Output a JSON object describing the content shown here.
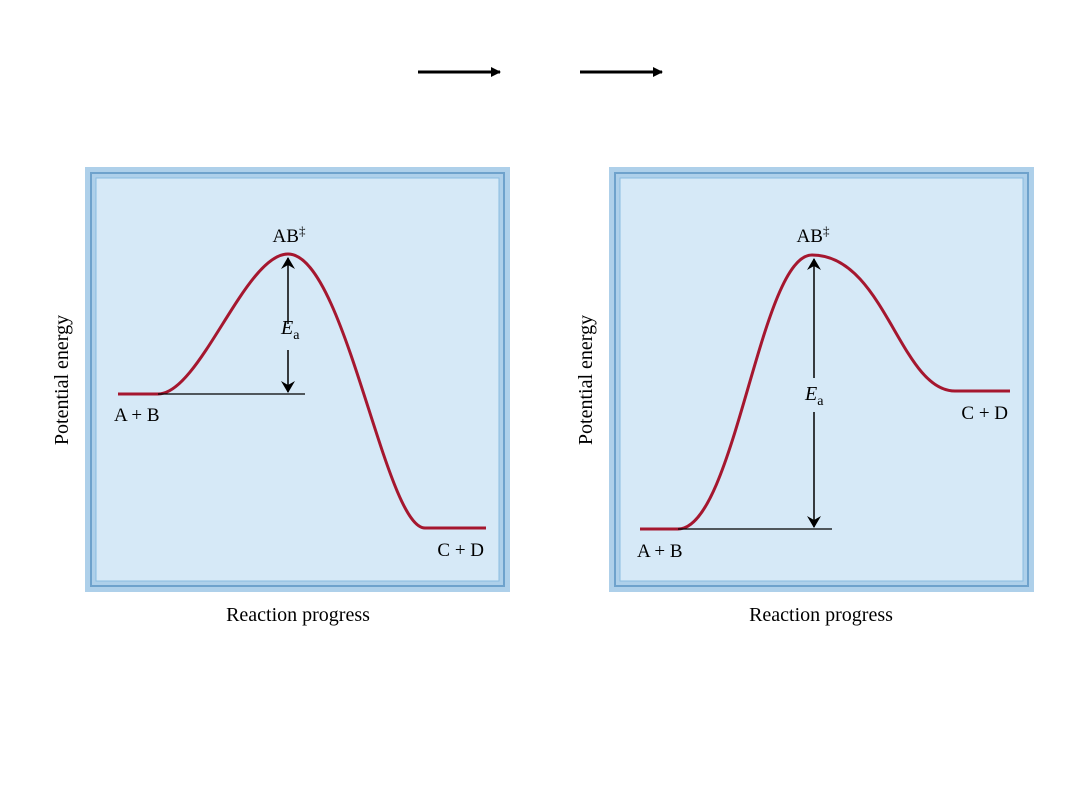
{
  "colors": {
    "panel_fill": "#d6e9f7",
    "frame": "#aed0ea",
    "frame_inner": "#6ea2cc",
    "curve": "#a5172f",
    "ink": "#000000"
  },
  "header": {
    "arrows": [
      "arrow-right-icon",
      "arrow-right-icon"
    ]
  },
  "panels": [
    {
      "id": "exothermic",
      "transition_state": "AB",
      "transition_mark": "‡",
      "ea_symbol": "E",
      "ea_subscript": "a",
      "reactants": "A + B",
      "products": "C + D",
      "ylabel": "Potential energy",
      "xlabel": "Reaction progress",
      "reactant_level": 0.38,
      "product_level": 0.0,
      "peak_level": 1.0
    },
    {
      "id": "endothermic",
      "transition_state": "AB",
      "transition_mark": "‡",
      "ea_symbol": "E",
      "ea_subscript": "a",
      "reactants": "A + B",
      "products": "C + D",
      "ylabel": "Potential energy",
      "xlabel": "Reaction progress",
      "reactant_level": 0.0,
      "product_level": 0.5,
      "peak_level": 1.0
    }
  ]
}
